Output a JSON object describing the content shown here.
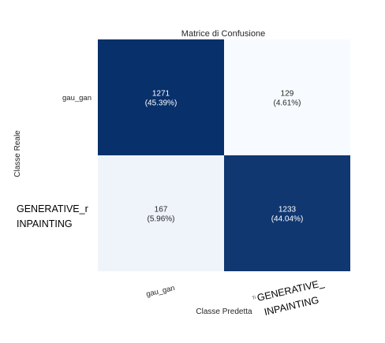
{
  "chart_data": {
    "type": "heatmap",
    "title": "Matrice di Confusione",
    "xlabel": "Classe Predetta",
    "ylabel": "Classe Reale",
    "categories": [
      "gau_gan",
      "GENERATIVE_INPAINTING"
    ],
    "matrix": [
      [
        1271,
        129
      ],
      [
        167,
        1233
      ]
    ],
    "percentages": [
      "45.39%",
      "4.61%",
      "5.96%",
      "44.04%"
    ],
    "colors": {
      "high": "#08306b",
      "low": "#f7fbff",
      "text_on_dark": "#ffffff",
      "text_on_light": "#262626"
    }
  },
  "overlay": {
    "y_upper": "GENERATIVE_r",
    "y_lower": "INPAINTING",
    "x_small": "Ti",
    "x_upper": "GENERATIVE_",
    "x_lower": "INPAINTING"
  }
}
